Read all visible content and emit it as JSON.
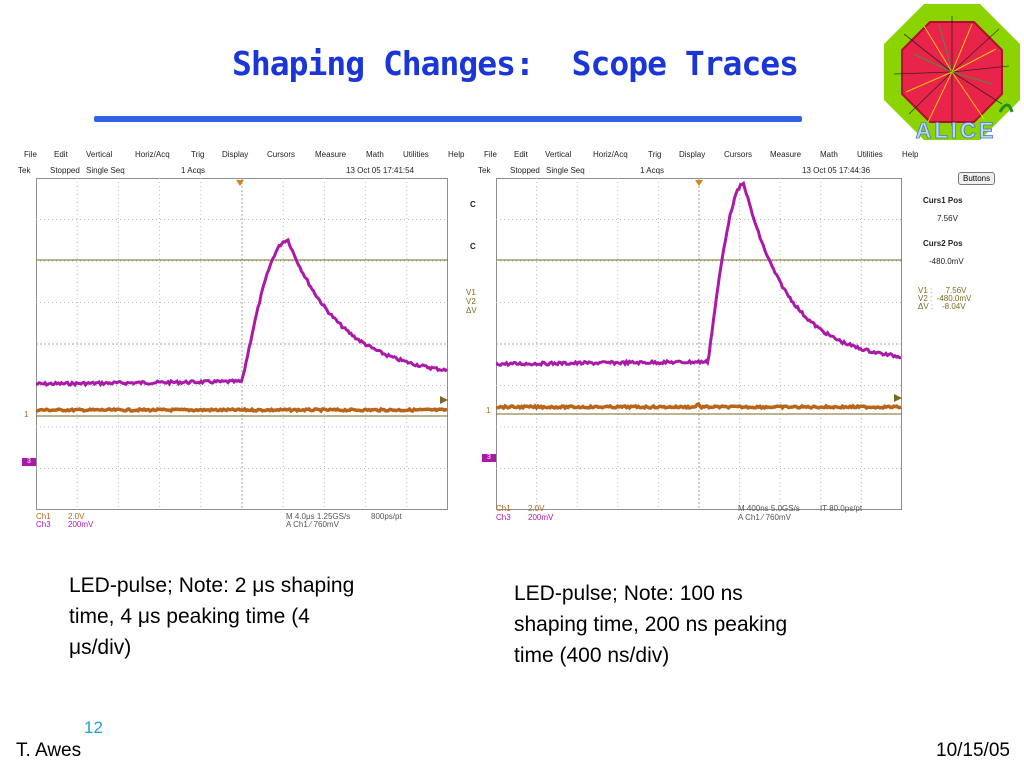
{
  "slide": {
    "title": "Shaping Changes:  Scope Traces",
    "footer_author": "T. Awes",
    "footer_date": "10/15/05",
    "page_number": "12",
    "logo_text": "ALICE",
    "caption_left": [
      "LED-pulse; Note: 2 μs shaping",
      "time, 4 μs peaking time (4",
      "μs/div)"
    ],
    "caption_right": [
      "LED-pulse; Note: 100 ns",
      "shaping time, 200 ns peaking",
      "time (400 ns/div)"
    ]
  },
  "colors": {
    "title": "#1a36d8",
    "ch1": "#b8651a",
    "ch3": "#aa1aa8",
    "grid": "#9aa0a0",
    "cursor": "#7a6a20",
    "page_number": "#1e9fd6"
  },
  "scope_left": {
    "menu": [
      "File",
      "Edit",
      "Vertical",
      "Horiz/Acq",
      "Trig",
      "Display",
      "Cursors",
      "Measure",
      "Math",
      "Utilities",
      "Help"
    ],
    "status_tek": "Tek",
    "status_state": "Stopped",
    "status_mode": "Single Seq",
    "status_acqs": "1 Acqs",
    "status_time": "13 Oct 05 17:41:54",
    "ch1_label": "Ch1",
    "ch1_scale": "2.0V",
    "ch3_label": "Ch3",
    "ch3_scale": "200mV",
    "timebase": "M 4.0μs 1.25GS/s",
    "points": "800ps/pt",
    "trigger": "A  Ch1  ⁄  760mV",
    "marker_1": "1",
    "marker_3": "3"
  },
  "scope_right": {
    "menu": [
      "File",
      "Edit",
      "Vertical",
      "Horiz/Acq",
      "Trig",
      "Display",
      "Cursors",
      "Measure",
      "Math",
      "Utilities",
      "Help"
    ],
    "status_tek": "Tek",
    "status_state": "Stopped",
    "status_mode": "Single Seq",
    "status_acqs": "1 Acqs",
    "status_time": "13 Oct 05 17:44:36",
    "ch1_label": "Ch1",
    "ch1_scale": "2.0V",
    "ch3_label": "Ch3",
    "ch3_scale": "200mV",
    "timebase": "M 400ns 5.0GS/s",
    "points": "IT 80.0ps/pt",
    "trigger": "A  Ch1  ⁄  760mV",
    "marker_1": "1",
    "marker_3": "3",
    "side_c1": "C",
    "side_c2": "C",
    "side_v1": "V1",
    "side_v2": "V2",
    "side_dv": "ΔV",
    "buttons_label": "Buttons",
    "curs1_title": "Curs1 Pos",
    "curs1_value": "7.56V",
    "curs2_title": "Curs2 Pos",
    "curs2_value": "-480.0mV",
    "readout_v1": "V1 :      7.56V",
    "readout_v2": "V2 :  -480.0mV",
    "readout_dv": "ΔV :    -8.04V"
  }
}
